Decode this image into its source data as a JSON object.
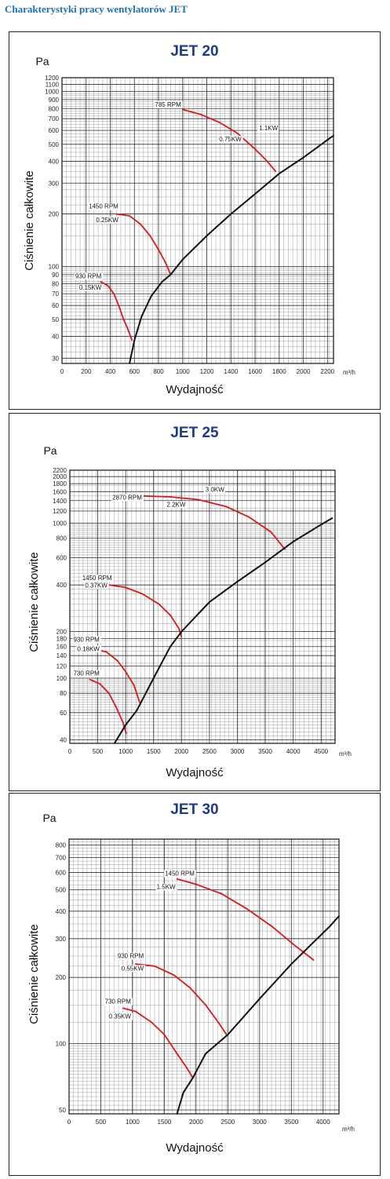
{
  "page": {
    "title": "Charakterystyki pracy wentylatorów JET"
  },
  "chart_data": [
    {
      "type": "line",
      "title": "JET 20",
      "ylabel": "Ciśnienie całkowite",
      "yunit": "Pa",
      "xlabel": "Wydajność",
      "xunit": "m³/h",
      "yscale": "log",
      "xlim": [
        0,
        2250
      ],
      "ylim": [
        28,
        1200
      ],
      "grid": true,
      "xticks": [
        0,
        200,
        400,
        600,
        800,
        1000,
        1200,
        1400,
        1600,
        1800,
        2000,
        2200
      ],
      "yticks": [
        30,
        40,
        50,
        60,
        70,
        80,
        90,
        100,
        200,
        300,
        400,
        500,
        600,
        700,
        800,
        900,
        1000,
        1100,
        1200
      ],
      "series": [
        {
          "name": "785 RPM / 0.75KW / 1.1KW",
          "color": "#d71920",
          "points": [
            [
              1000,
              790
            ],
            [
              1150,
              740
            ],
            [
              1300,
              670
            ],
            [
              1450,
              580
            ],
            [
              1600,
              470
            ],
            [
              1700,
              400
            ],
            [
              1770,
              350
            ]
          ]
        },
        {
          "name": "1450 RPM / 0.25KW",
          "color": "#d71920",
          "points": [
            [
              450,
              200
            ],
            [
              560,
              195
            ],
            [
              650,
              175
            ],
            [
              730,
              150
            ],
            [
              800,
              125
            ],
            [
              860,
              105
            ],
            [
              900,
              90
            ]
          ]
        },
        {
          "name": "930 RPM / 0.15KW",
          "color": "#d71920",
          "points": [
            [
              320,
              82
            ],
            [
              380,
              78
            ],
            [
              430,
              70
            ],
            [
              470,
              60
            ],
            [
              510,
              50
            ],
            [
              540,
              45
            ],
            [
              580,
              38
            ]
          ]
        },
        {
          "name": "system",
          "color": "#111111",
          "points": [
            [
              560,
              28
            ],
            [
              600,
              38
            ],
            [
              660,
              52
            ],
            [
              740,
              68
            ],
            [
              830,
              82
            ],
            [
              900,
              90
            ],
            [
              1000,
              110
            ],
            [
              1200,
              150
            ],
            [
              1400,
              200
            ],
            [
              1600,
              260
            ],
            [
              1800,
              340
            ],
            [
              2000,
              420
            ],
            [
              2200,
              530
            ],
            [
              2250,
              560
            ]
          ]
        }
      ],
      "annotations": [
        "785 RPM",
        "0.75KW",
        "1.1KW",
        "1450 RPM",
        "0.25KW",
        "930 RPM",
        "0.15KW"
      ]
    },
    {
      "type": "line",
      "title": "JET 25",
      "ylabel": "Ciśnienie całkowite",
      "yunit": "Pa",
      "xlabel": "Wydajność",
      "xunit": "m³/h",
      "yscale": "log",
      "xlim": [
        0,
        4750
      ],
      "ylim": [
        38,
        2200
      ],
      "grid": true,
      "xticks": [
        0,
        500,
        1000,
        1500,
        2000,
        2500,
        3000,
        3500,
        4000,
        4500
      ],
      "yticks": [
        40,
        60,
        80,
        100,
        120,
        140,
        160,
        180,
        200,
        400,
        600,
        800,
        1000,
        1200,
        1400,
        1600,
        1800,
        2000,
        2200
      ],
      "series": [
        {
          "name": "2870 RPM / 2.2KW / 3.0KW",
          "color": "#d71920",
          "points": [
            [
              1300,
              1500
            ],
            [
              1800,
              1480
            ],
            [
              2300,
              1420
            ],
            [
              2800,
              1280
            ],
            [
              3200,
              1100
            ],
            [
              3600,
              880
            ],
            [
              3850,
              680
            ]
          ]
        },
        {
          "name": "1450 RPM / 0.37KW",
          "color": "#d71920",
          "points": [
            [
              700,
              400
            ],
            [
              1000,
              385
            ],
            [
              1300,
              350
            ],
            [
              1600,
              300
            ],
            [
              1800,
              255
            ],
            [
              1950,
              210
            ],
            [
              2000,
              185
            ]
          ]
        },
        {
          "name": "930 RPM / 0.18KW",
          "color": "#d71920",
          "points": [
            [
              380,
              155
            ],
            [
              650,
              148
            ],
            [
              850,
              130
            ],
            [
              1000,
              110
            ],
            [
              1150,
              90
            ],
            [
              1250,
              70
            ]
          ]
        },
        {
          "name": "730 RPM",
          "color": "#d71920",
          "points": [
            [
              360,
              98
            ],
            [
              540,
              92
            ],
            [
              700,
              80
            ],
            [
              830,
              65
            ],
            [
              950,
              52
            ],
            [
              1010,
              44
            ]
          ]
        },
        {
          "name": "system",
          "color": "#111111",
          "points": [
            [
              800,
              38
            ],
            [
              1000,
              50
            ],
            [
              1200,
              62
            ],
            [
              1500,
              100
            ],
            [
              1800,
              160
            ],
            [
              2000,
              200
            ],
            [
              2500,
              310
            ],
            [
              3000,
              420
            ],
            [
              3500,
              560
            ],
            [
              4000,
              760
            ],
            [
              4500,
              980
            ],
            [
              4700,
              1080
            ]
          ]
        }
      ],
      "annotations": [
        "2870 RPM",
        "2.2KW",
        "3.0KW",
        "1450 RPM",
        "0.37KW",
        "930 RPM",
        "0.18KW",
        "730 RPM"
      ]
    },
    {
      "type": "line",
      "title": "JET 30",
      "ylabel": "Ciśnienie całkowite",
      "yunit": "Pa",
      "xlabel": "Wydajność",
      "xunit": "m³/h",
      "yscale": "log",
      "xlim": [
        0,
        4250
      ],
      "ylim": [
        48,
        850
      ],
      "grid": true,
      "xticks": [
        0,
        500,
        1000,
        1500,
        2000,
        2500,
        3000,
        3500,
        4000
      ],
      "yticks": [
        50,
        100,
        200,
        300,
        400,
        500,
        600,
        700,
        800
      ],
      "series": [
        {
          "name": "1450 RPM / 1.5KW",
          "color": "#d71920",
          "points": [
            [
              1700,
              560
            ],
            [
              2000,
              530
            ],
            [
              2400,
              480
            ],
            [
              2800,
              410
            ],
            [
              3200,
              340
            ],
            [
              3550,
              280
            ],
            [
              3850,
              240
            ]
          ]
        },
        {
          "name": "930 RPM / 0.55KW",
          "color": "#d71920",
          "points": [
            [
              1050,
              230
            ],
            [
              1350,
              225
            ],
            [
              1650,
              205
            ],
            [
              1900,
              180
            ],
            [
              2150,
              150
            ],
            [
              2350,
              125
            ],
            [
              2480,
              110
            ]
          ]
        },
        {
          "name": "730 RPM / 0.35KW",
          "color": "#d71920",
          "points": [
            [
              850,
              145
            ],
            [
              1050,
              140
            ],
            [
              1300,
              125
            ],
            [
              1500,
              110
            ],
            [
              1700,
              90
            ],
            [
              1850,
              78
            ],
            [
              1950,
              70
            ]
          ]
        },
        {
          "name": "system",
          "color": "#111111",
          "points": [
            [
              1700,
              48
            ],
            [
              1800,
              60
            ],
            [
              1950,
              70
            ],
            [
              2150,
              90
            ],
            [
              2500,
              110
            ],
            [
              3000,
              160
            ],
            [
              3500,
              230
            ],
            [
              3800,
              280
            ],
            [
              4100,
              340
            ],
            [
              4250,
              380
            ]
          ]
        }
      ],
      "annotations": [
        "1450 RPM",
        "1.5KW",
        "930 RPM",
        "0.55KW",
        "730 RPM",
        "0.35KW"
      ]
    }
  ]
}
